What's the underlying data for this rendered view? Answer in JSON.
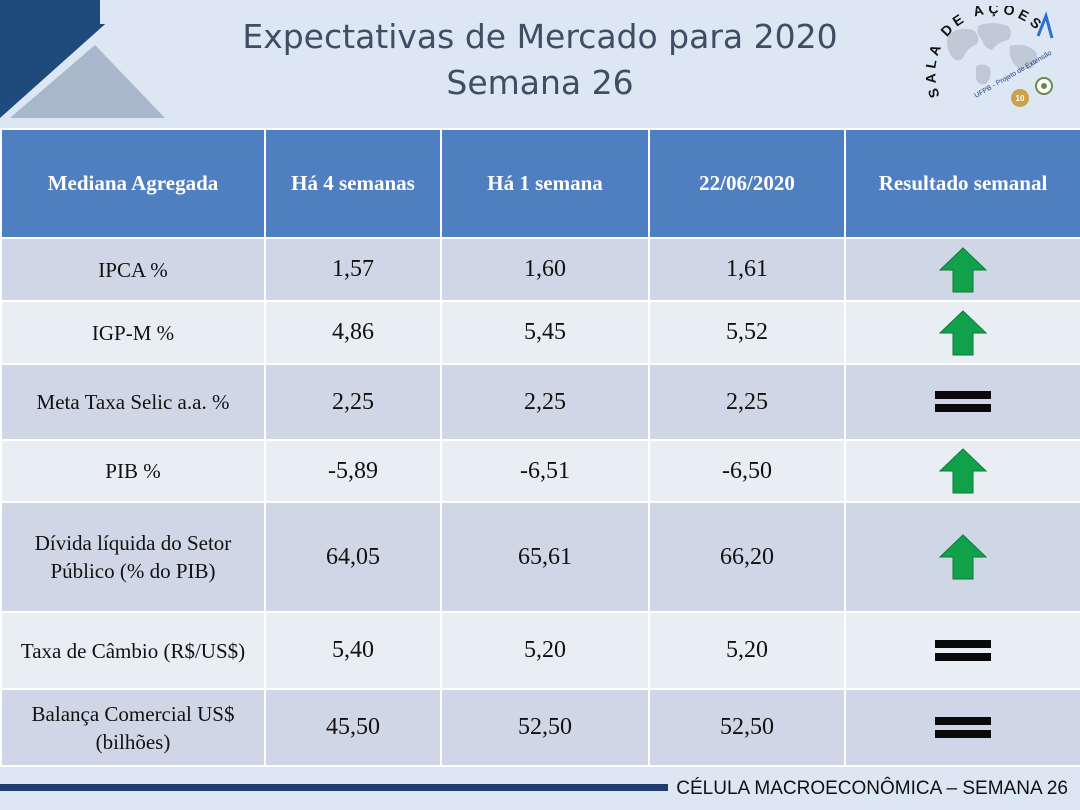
{
  "header": {
    "title_line1": "Expectativas de Mercado para 2020",
    "title_line2": "Semana 26",
    "logo": {
      "arc_text": "SALA DE AÇÕES",
      "tagline": "UFPB - Projeto de Extensão",
      "badge": "10"
    }
  },
  "table": {
    "columns": [
      "Mediana Agregada",
      "Há 4 semanas",
      "Há 1 semana",
      "22/06/2020",
      "Resultado semanal"
    ],
    "rows": [
      {
        "label": "IPCA %",
        "v4": "1,57",
        "v1": "1,60",
        "v0": "1,61",
        "result": "up"
      },
      {
        "label": "IGP-M %",
        "v4": "4,86",
        "v1": "5,45",
        "v0": "5,52",
        "result": "up"
      },
      {
        "label": "Meta Taxa Selic a.a. %",
        "v4": "2,25",
        "v1": "2,25",
        "v0": "2,25",
        "result": "equal"
      },
      {
        "label": "PIB %",
        "v4": "-5,89",
        "v1": "-6,51",
        "v0": "-6,50",
        "result": "up"
      },
      {
        "label": "Dívida líquida do Setor Público (% do PIB)",
        "v4": "64,05",
        "v1": "65,61",
        "v0": "66,20",
        "result": "up"
      },
      {
        "label": "Taxa de Câmbio (R$/US$)",
        "v4": "5,40",
        "v1": "5,20",
        "v0": "5,20",
        "result": "equal"
      },
      {
        "label": "Balança Comercial US$ (bilhões)",
        "v4": "45,50",
        "v1": "52,50",
        "v0": "52,50",
        "result": "equal"
      }
    ]
  },
  "footer": {
    "text": "CÉLULA MACROECONÔMICA – SEMANA 26"
  },
  "colors": {
    "header_bg": "#dde7f3",
    "table_header": "#4f7fc0",
    "row_odd": "#cfd6e6",
    "row_even": "#e9edf4",
    "arrow_green": "#12a14b",
    "navy": "#1e3d6e"
  }
}
